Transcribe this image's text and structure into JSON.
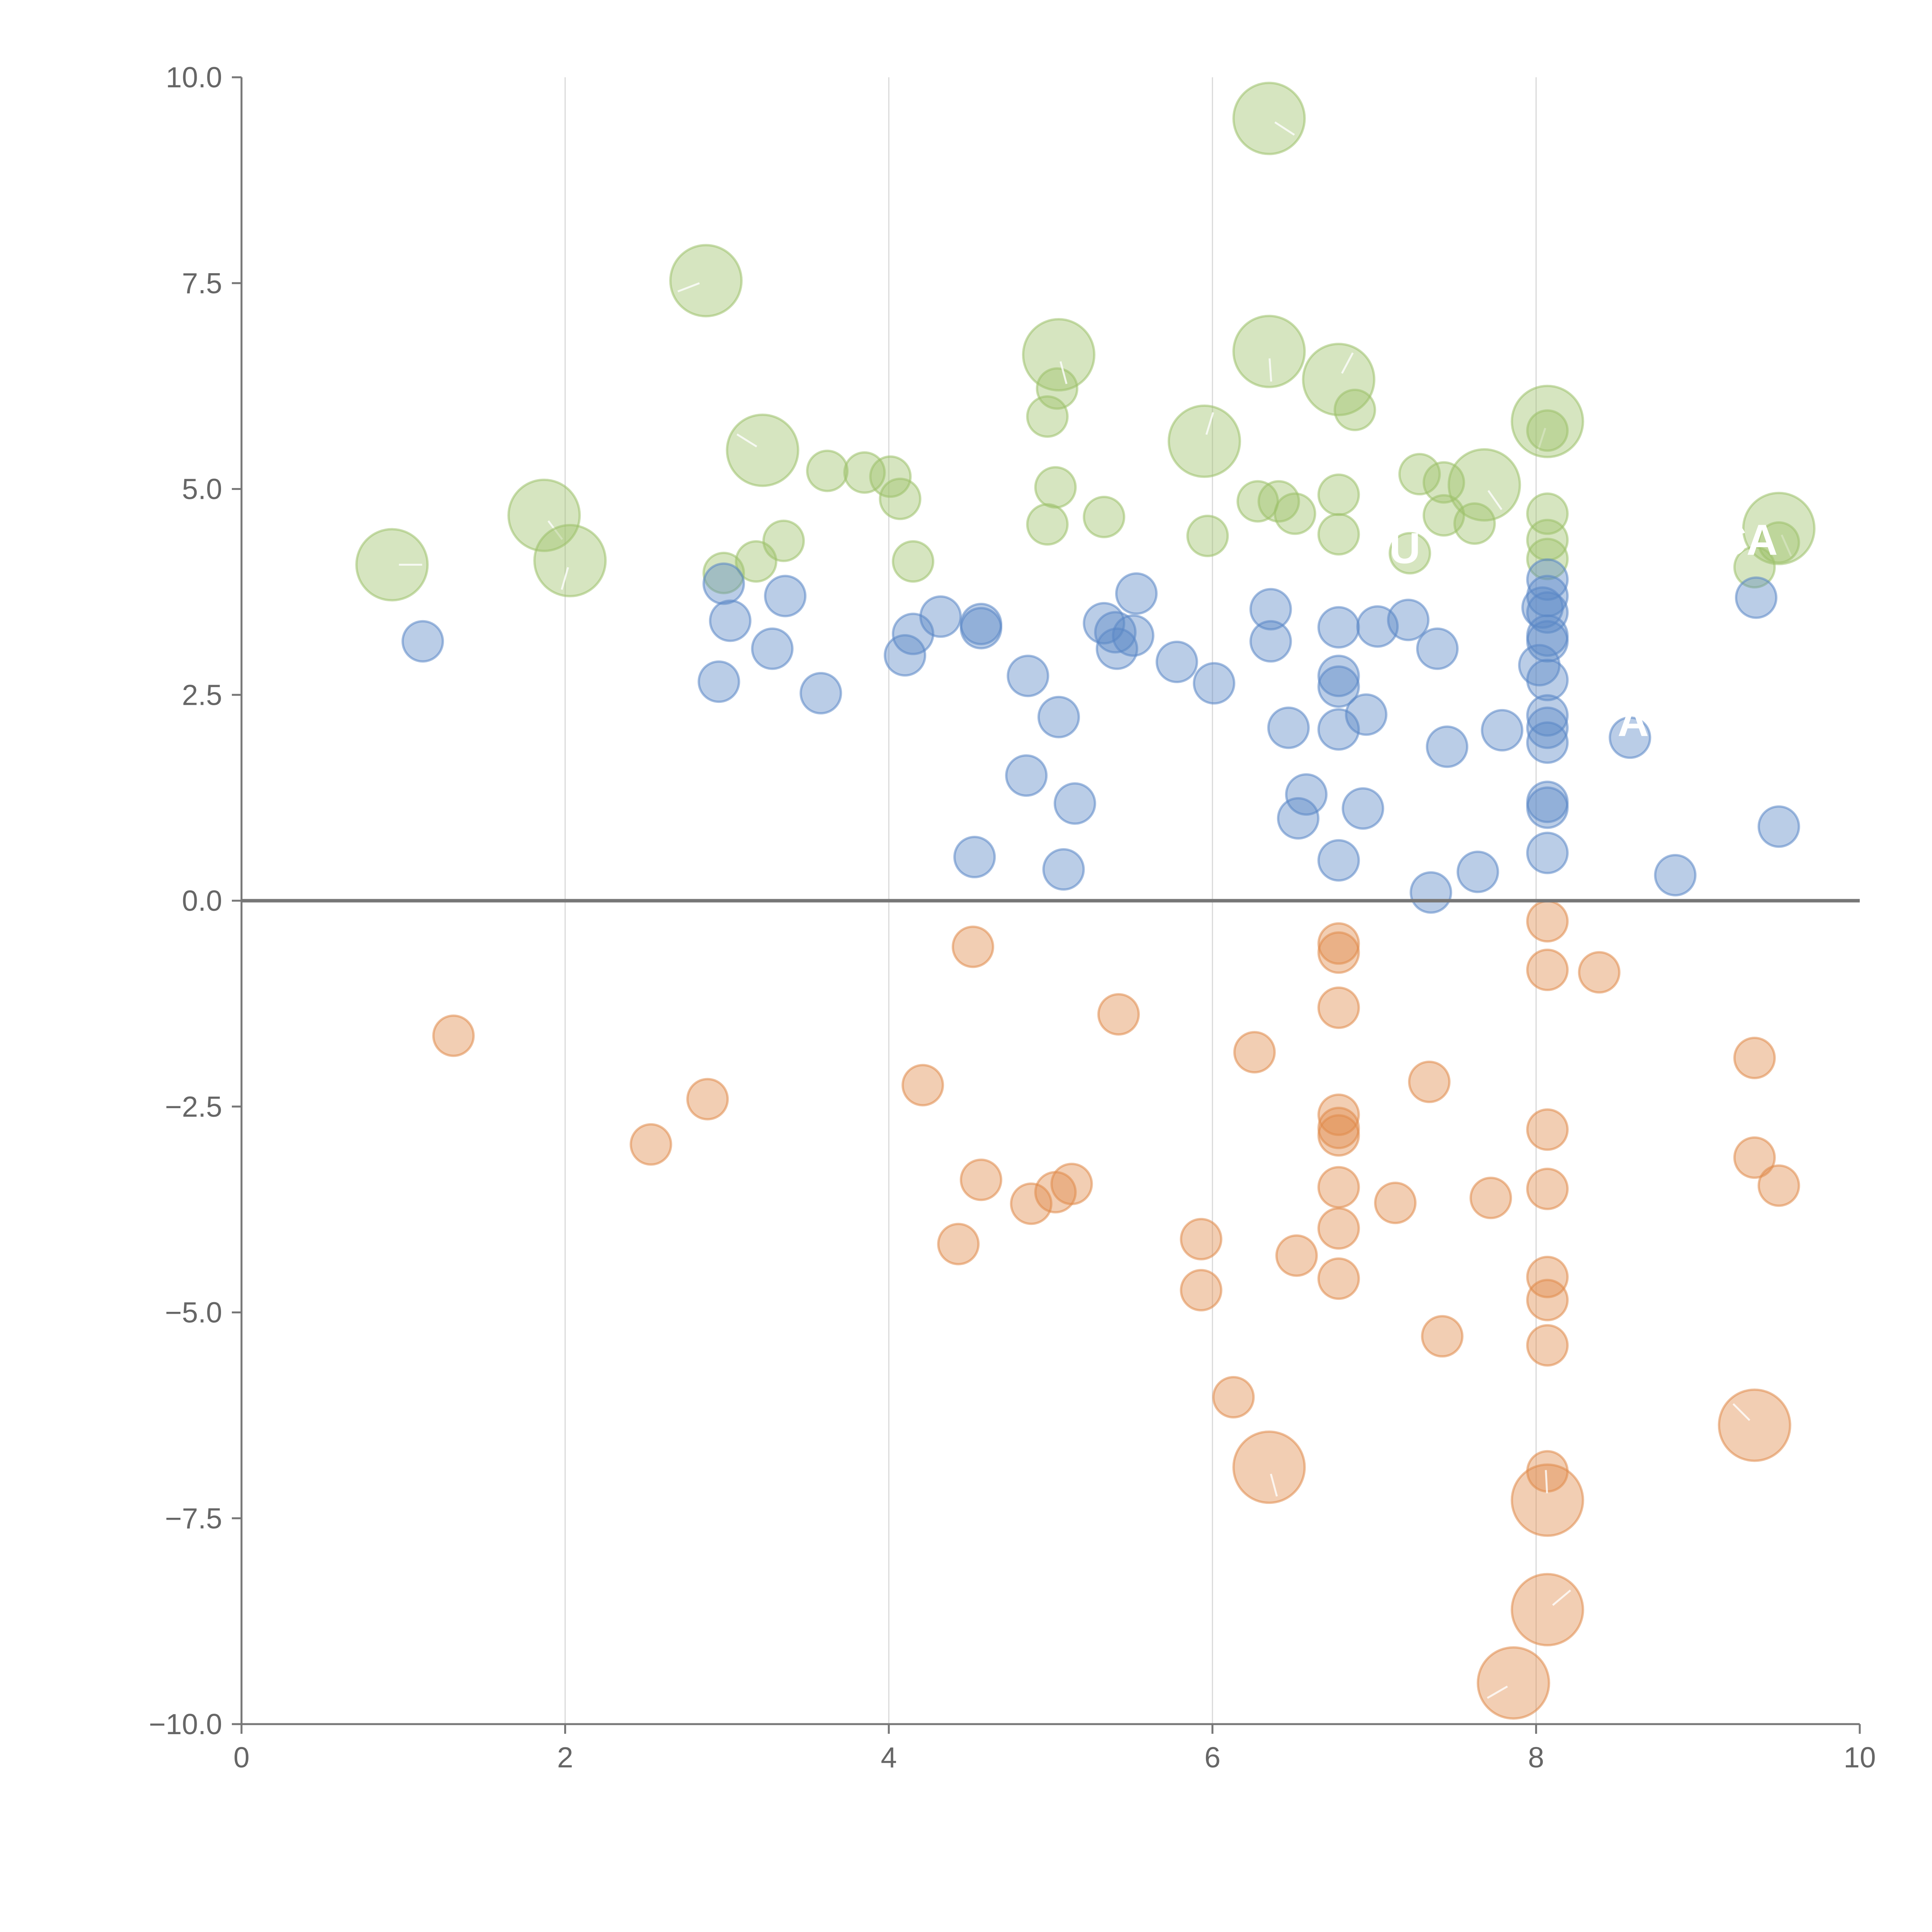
{
  "chart_data": {
    "type": "scatter",
    "title": "",
    "xlabel": "",
    "ylabel": "",
    "xlim": [
      0,
      10
    ],
    "ylim": [
      -10,
      10
    ],
    "x_ticks": [
      "0",
      "2",
      "4",
      "6",
      "8",
      "10"
    ],
    "y_ticks": [
      "10.0",
      "7.5",
      "5.0",
      "2.5",
      "0.0",
      "−2.5",
      "−5.0",
      "−7.5",
      "−10.0"
    ],
    "grid": "vertical",
    "colors": {
      "green": "#9dc16a",
      "blue": "#5a87c6",
      "orange": "#e08a4a"
    },
    "annotations": [
      {
        "text": "CA",
        "x": 9.3,
        "y": 4.2
      },
      {
        "text": "EU",
        "x": 7.1,
        "y": 4.1
      },
      {
        "text": "A",
        "x": 8.6,
        "y": 2.0
      }
    ],
    "series": [
      {
        "name": "green",
        "color": "#9dc16a",
        "points": [
          {
            "x": 0.93,
            "y": 4.08,
            "s": 2
          },
          {
            "x": 1.87,
            "y": 4.68,
            "s": 2
          },
          {
            "x": 2.03,
            "y": 4.13,
            "s": 2
          },
          {
            "x": 2.87,
            "y": 7.53,
            "s": 2
          },
          {
            "x": 3.22,
            "y": 5.47,
            "s": 2
          },
          {
            "x": 2.98,
            "y": 3.98,
            "s": 0
          },
          {
            "x": 3.18,
            "y": 4.12,
            "s": 0
          },
          {
            "x": 3.35,
            "y": 4.37,
            "s": 0
          },
          {
            "x": 3.62,
            "y": 5.22,
            "s": 0
          },
          {
            "x": 3.85,
            "y": 5.2,
            "s": 0
          },
          {
            "x": 4.01,
            "y": 5.15,
            "s": 0
          },
          {
            "x": 4.07,
            "y": 4.88,
            "s": 0
          },
          {
            "x": 4.15,
            "y": 4.12,
            "s": 0
          },
          {
            "x": 4.98,
            "y": 5.88,
            "s": 0
          },
          {
            "x": 5.04,
            "y": 6.22,
            "s": 0
          },
          {
            "x": 5.05,
            "y": 6.63,
            "s": 2
          },
          {
            "x": 5.03,
            "y": 5.02,
            "s": 0
          },
          {
            "x": 4.98,
            "y": 4.57,
            "s": 0
          },
          {
            "x": 5.33,
            "y": 4.66,
            "s": 0
          },
          {
            "x": 5.95,
            "y": 5.58,
            "s": 2
          },
          {
            "x": 5.97,
            "y": 4.43,
            "s": 0
          },
          {
            "x": 6.35,
            "y": 9.5,
            "s": 2
          },
          {
            "x": 6.35,
            "y": 6.67,
            "s": 2
          },
          {
            "x": 6.28,
            "y": 4.85,
            "s": 0
          },
          {
            "x": 6.41,
            "y": 4.85,
            "s": 0
          },
          {
            "x": 6.51,
            "y": 4.7,
            "s": 0
          },
          {
            "x": 6.78,
            "y": 6.33,
            "s": 2
          },
          {
            "x": 6.88,
            "y": 5.96,
            "s": 0
          },
          {
            "x": 6.78,
            "y": 4.93,
            "s": 0
          },
          {
            "x": 6.78,
            "y": 4.45,
            "s": 0
          },
          {
            "x": 7.22,
            "y": 4.22,
            "s": 0
          },
          {
            "x": 7.28,
            "y": 5.18,
            "s": 0
          },
          {
            "x": 7.43,
            "y": 5.08,
            "s": 0
          },
          {
            "x": 7.43,
            "y": 4.68,
            "s": 0
          },
          {
            "x": 7.62,
            "y": 4.58,
            "s": 0
          },
          {
            "x": 7.68,
            "y": 5.05,
            "s": 2
          },
          {
            "x": 8.07,
            "y": 5.82,
            "s": 2
          },
          {
            "x": 8.07,
            "y": 5.71,
            "s": 0
          },
          {
            "x": 8.07,
            "y": 4.7,
            "s": 0
          },
          {
            "x": 8.07,
            "y": 4.38,
            "s": 0
          },
          {
            "x": 8.07,
            "y": 4.15,
            "s": 0
          },
          {
            "x": 9.35,
            "y": 4.05,
            "s": 0
          },
          {
            "x": 9.5,
            "y": 4.52,
            "s": 2
          },
          {
            "x": 9.5,
            "y": 4.35,
            "s": 0
          }
        ]
      },
      {
        "name": "blue",
        "color": "#5a87c6",
        "points": [
          {
            "x": 1.12,
            "y": 3.15,
            "s": 0
          },
          {
            "x": 2.98,
            "y": 3.85,
            "s": 0
          },
          {
            "x": 3.02,
            "y": 3.4,
            "s": 0
          },
          {
            "x": 2.95,
            "y": 2.66,
            "s": 0
          },
          {
            "x": 3.28,
            "y": 3.06,
            "s": 0
          },
          {
            "x": 3.36,
            "y": 3.7,
            "s": 0
          },
          {
            "x": 3.58,
            "y": 2.52,
            "s": 0
          },
          {
            "x": 4.1,
            "y": 2.98,
            "s": 0
          },
          {
            "x": 4.15,
            "y": 3.24,
            "s": 0
          },
          {
            "x": 4.32,
            "y": 3.45,
            "s": 0
          },
          {
            "x": 4.57,
            "y": 3.36,
            "s": 0
          },
          {
            "x": 4.57,
            "y": 3.31,
            "s": 0
          },
          {
            "x": 4.86,
            "y": 2.73,
            "s": 0
          },
          {
            "x": 5.05,
            "y": 2.23,
            "s": 0
          },
          {
            "x": 4.85,
            "y": 1.52,
            "s": 0
          },
          {
            "x": 5.15,
            "y": 1.18,
            "s": 0
          },
          {
            "x": 4.53,
            "y": 0.53,
            "s": 0
          },
          {
            "x": 5.08,
            "y": 0.38,
            "s": 0
          },
          {
            "x": 5.33,
            "y": 3.37,
            "s": 0
          },
          {
            "x": 5.4,
            "y": 3.26,
            "s": 0
          },
          {
            "x": 5.41,
            "y": 3.06,
            "s": 0
          },
          {
            "x": 5.51,
            "y": 3.22,
            "s": 0
          },
          {
            "x": 5.53,
            "y": 3.73,
            "s": 0
          },
          {
            "x": 5.78,
            "y": 2.9,
            "s": 0
          },
          {
            "x": 6.01,
            "y": 2.64,
            "s": 0
          },
          {
            "x": 6.36,
            "y": 3.54,
            "s": 0
          },
          {
            "x": 6.36,
            "y": 3.15,
            "s": 0
          },
          {
            "x": 6.47,
            "y": 2.1,
            "s": 0
          },
          {
            "x": 6.58,
            "y": 1.29,
            "s": 0
          },
          {
            "x": 6.53,
            "y": 1.0,
            "s": 0
          },
          {
            "x": 6.78,
            "y": 3.32,
            "s": 0
          },
          {
            "x": 6.78,
            "y": 2.73,
            "s": 0
          },
          {
            "x": 6.78,
            "y": 2.6,
            "s": 0
          },
          {
            "x": 6.78,
            "y": 2.08,
            "s": 0
          },
          {
            "x": 6.78,
            "y": 0.49,
            "s": 0
          },
          {
            "x": 6.95,
            "y": 2.26,
            "s": 0
          },
          {
            "x": 6.93,
            "y": 1.12,
            "s": 0
          },
          {
            "x": 7.02,
            "y": 3.33,
            "s": 0
          },
          {
            "x": 7.21,
            "y": 3.41,
            "s": 0
          },
          {
            "x": 7.39,
            "y": 3.06,
            "s": 0
          },
          {
            "x": 7.45,
            "y": 1.87,
            "s": 0
          },
          {
            "x": 7.35,
            "y": 0.1,
            "s": 0
          },
          {
            "x": 7.64,
            "y": 0.35,
            "s": 0
          },
          {
            "x": 7.79,
            "y": 2.07,
            "s": 0
          },
          {
            "x": 8.07,
            "y": 3.9,
            "s": 0
          },
          {
            "x": 8.07,
            "y": 3.7,
            "s": 0
          },
          {
            "x": 8.04,
            "y": 3.56,
            "s": 0
          },
          {
            "x": 8.07,
            "y": 3.5,
            "s": 0
          },
          {
            "x": 8.07,
            "y": 3.22,
            "s": 0
          },
          {
            "x": 8.07,
            "y": 3.15,
            "s": 0
          },
          {
            "x": 8.02,
            "y": 2.86,
            "s": 0
          },
          {
            "x": 8.07,
            "y": 2.68,
            "s": 0
          },
          {
            "x": 8.07,
            "y": 2.25,
            "s": 0
          },
          {
            "x": 8.07,
            "y": 2.1,
            "s": 0
          },
          {
            "x": 8.07,
            "y": 1.92,
            "s": 0
          },
          {
            "x": 8.07,
            "y": 1.2,
            "s": 0
          },
          {
            "x": 8.07,
            "y": 1.13,
            "s": 0
          },
          {
            "x": 8.07,
            "y": 0.58,
            "s": 0
          },
          {
            "x": 8.58,
            "y": 1.98,
            "s": 0
          },
          {
            "x": 8.86,
            "y": 0.31,
            "s": 0
          },
          {
            "x": 9.36,
            "y": 3.68,
            "s": 0
          },
          {
            "x": 9.5,
            "y": 0.9,
            "s": 0
          }
        ]
      },
      {
        "name": "orange",
        "color": "#e08a4a",
        "points": [
          {
            "x": 1.31,
            "y": -1.64,
            "s": 0
          },
          {
            "x": 2.53,
            "y": -2.96,
            "s": 0
          },
          {
            "x": 2.88,
            "y": -2.41,
            "s": 0
          },
          {
            "x": 4.52,
            "y": -0.56,
            "s": 0
          },
          {
            "x": 4.21,
            "y": -2.24,
            "s": 0
          },
          {
            "x": 4.57,
            "y": -3.39,
            "s": 0
          },
          {
            "x": 4.43,
            "y": -4.17,
            "s": 0
          },
          {
            "x": 4.88,
            "y": -3.68,
            "s": 0
          },
          {
            "x": 5.03,
            "y": -3.54,
            "s": 0
          },
          {
            "x": 5.13,
            "y": -3.44,
            "s": 0
          },
          {
            "x": 5.42,
            "y": -1.38,
            "s": 0
          },
          {
            "x": 5.93,
            "y": -4.11,
            "s": 0
          },
          {
            "x": 5.93,
            "y": -4.73,
            "s": 0
          },
          {
            "x": 6.13,
            "y": -6.03,
            "s": 0
          },
          {
            "x": 6.26,
            "y": -1.84,
            "s": 0
          },
          {
            "x": 6.35,
            "y": -6.88,
            "s": 2
          },
          {
            "x": 6.52,
            "y": -4.31,
            "s": 0
          },
          {
            "x": 6.78,
            "y": -0.52,
            "s": 0
          },
          {
            "x": 6.78,
            "y": -0.63,
            "s": 0
          },
          {
            "x": 6.78,
            "y": -1.3,
            "s": 0
          },
          {
            "x": 6.78,
            "y": -2.6,
            "s": 0
          },
          {
            "x": 6.78,
            "y": -2.76,
            "s": 0
          },
          {
            "x": 6.78,
            "y": -2.85,
            "s": 0
          },
          {
            "x": 6.78,
            "y": -3.48,
            "s": 0
          },
          {
            "x": 6.78,
            "y": -3.98,
            "s": 0
          },
          {
            "x": 6.78,
            "y": -4.59,
            "s": 0
          },
          {
            "x": 7.13,
            "y": -3.67,
            "s": 0
          },
          {
            "x": 7.34,
            "y": -2.2,
            "s": 0
          },
          {
            "x": 7.42,
            "y": -5.29,
            "s": 0
          },
          {
            "x": 7.72,
            "y": -3.61,
            "s": 0
          },
          {
            "x": 7.86,
            "y": -9.5,
            "s": 2
          },
          {
            "x": 8.07,
            "y": -0.25,
            "s": 0
          },
          {
            "x": 8.07,
            "y": -0.84,
            "s": 0
          },
          {
            "x": 8.07,
            "y": -2.78,
            "s": 0
          },
          {
            "x": 8.07,
            "y": -3.5,
            "s": 0
          },
          {
            "x": 8.07,
            "y": -4.57,
            "s": 0
          },
          {
            "x": 8.07,
            "y": -4.85,
            "s": 0
          },
          {
            "x": 8.07,
            "y": -5.4,
            "s": 0
          },
          {
            "x": 8.07,
            "y": -6.93,
            "s": 0
          },
          {
            "x": 8.07,
            "y": -7.28,
            "s": 2
          },
          {
            "x": 8.07,
            "y": -8.61,
            "s": 2
          },
          {
            "x": 8.39,
            "y": -0.87,
            "s": 0
          },
          {
            "x": 9.35,
            "y": -1.91,
            "s": 0
          },
          {
            "x": 9.35,
            "y": -3.12,
            "s": 0
          },
          {
            "x": 9.5,
            "y": -3.46,
            "s": 0
          },
          {
            "x": 9.35,
            "y": -6.37,
            "s": 2
          }
        ]
      }
    ]
  }
}
